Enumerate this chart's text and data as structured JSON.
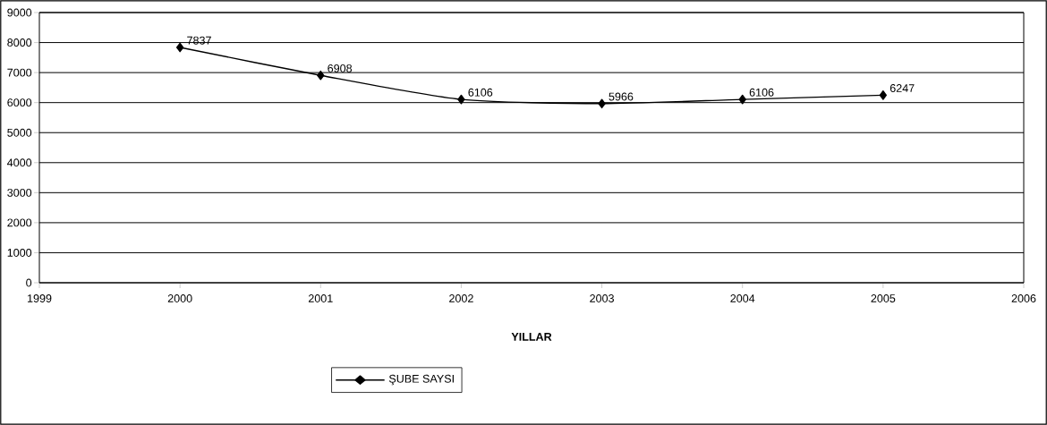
{
  "chart_data": {
    "type": "line",
    "xlabel": "YILLAR",
    "x": [
      2000,
      2001,
      2002,
      2003,
      2004,
      2005
    ],
    "series": [
      {
        "name": "ŞUBE SAYSI",
        "color": "#000000",
        "values": [
          7837,
          6908,
          6106,
          5966,
          6106,
          6247
        ]
      }
    ],
    "xlim": [
      1999,
      2006
    ],
    "xticks": [
      1999,
      2000,
      2001,
      2002,
      2003,
      2004,
      2005,
      2006
    ],
    "ylim": [
      0,
      9000
    ],
    "yticks": [
      0,
      1000,
      2000,
      3000,
      4000,
      5000,
      6000,
      7000,
      8000,
      9000
    ],
    "grid": "y",
    "legend": "bottom",
    "marker": "diamond",
    "line_style": "solid",
    "data_labels": true
  }
}
